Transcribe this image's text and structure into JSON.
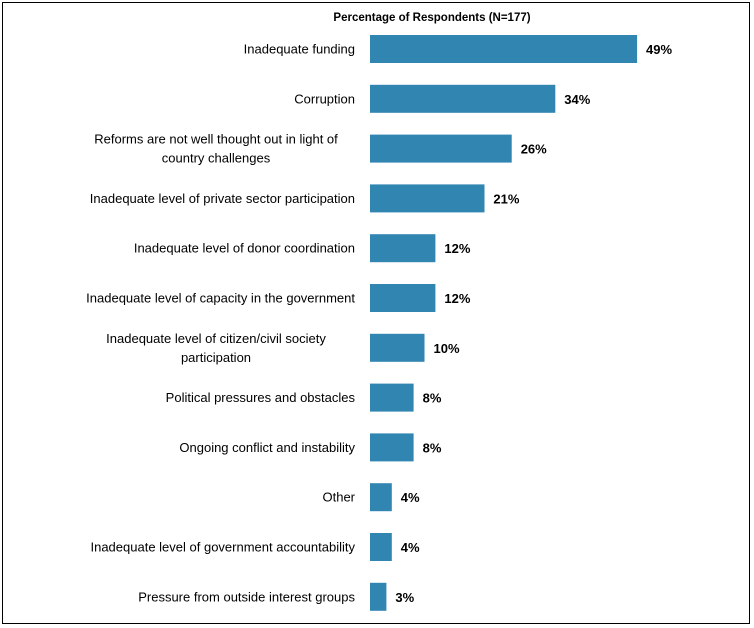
{
  "chart_data": {
    "type": "bar",
    "orientation": "horizontal",
    "title": "Percentage of Respondents (N=177)",
    "xlabel": "",
    "ylabel": "",
    "categories": [
      [
        "Inadequate funding"
      ],
      [
        "Corruption"
      ],
      [
        "Reforms are not well thought out in light of",
        "country challenges"
      ],
      [
        "Inadequate level of private sector participation"
      ],
      [
        "Inadequate level of donor coordination"
      ],
      [
        "Inadequate level of capacity in the government"
      ],
      [
        "Inadequate level of citizen/civil society",
        "participation"
      ],
      [
        "Political pressures and obstacles"
      ],
      [
        "Ongoing conflict and instability"
      ],
      [
        "Other"
      ],
      [
        "Inadequate level of government accountability"
      ],
      [
        "Pressure from outside interest groups"
      ]
    ],
    "values": [
      49,
      34,
      26,
      21,
      12,
      12,
      10,
      8,
      8,
      4,
      4,
      3
    ],
    "value_labels": [
      "49%",
      "34%",
      "26%",
      "21%",
      "12%",
      "12%",
      "10%",
      "8%",
      "8%",
      "4%",
      "4%",
      "3%"
    ],
    "xlim": [
      0,
      50
    ],
    "grid": false,
    "legend": "none",
    "bar_color": "#3185B1"
  }
}
